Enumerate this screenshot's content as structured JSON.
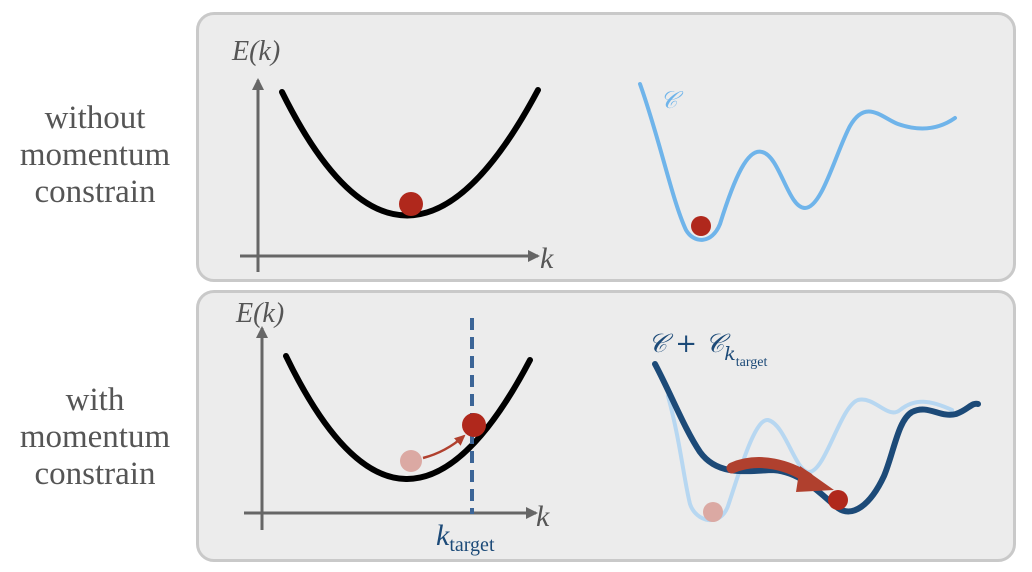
{
  "labels": {
    "top": [
      "without",
      "momentum",
      "constrain"
    ],
    "bottom": [
      "with",
      "momentum",
      "constrain"
    ]
  },
  "top_panel": {
    "y_axis_label": "E(k)",
    "x_axis_label": "k",
    "landscape_label": "𝒞"
  },
  "bottom_panel": {
    "y_axis_label": "E(k)",
    "x_axis_label": "k",
    "target_label_main": "k",
    "target_label_sub": "target",
    "landscape_label_main": "𝒞 + 𝒞",
    "landscape_label_sub_k": "k",
    "landscape_label_sub_target": "target"
  },
  "colors": {
    "panel_bg": "#ececec",
    "axis": "#666666",
    "ball": "#b0281c",
    "ball_faded": "#dba9a3",
    "light_blue": "#6fb4ea",
    "dark_blue": "#1c4a78",
    "dashed": "#3c6597",
    "arrow": "#b0402e"
  }
}
